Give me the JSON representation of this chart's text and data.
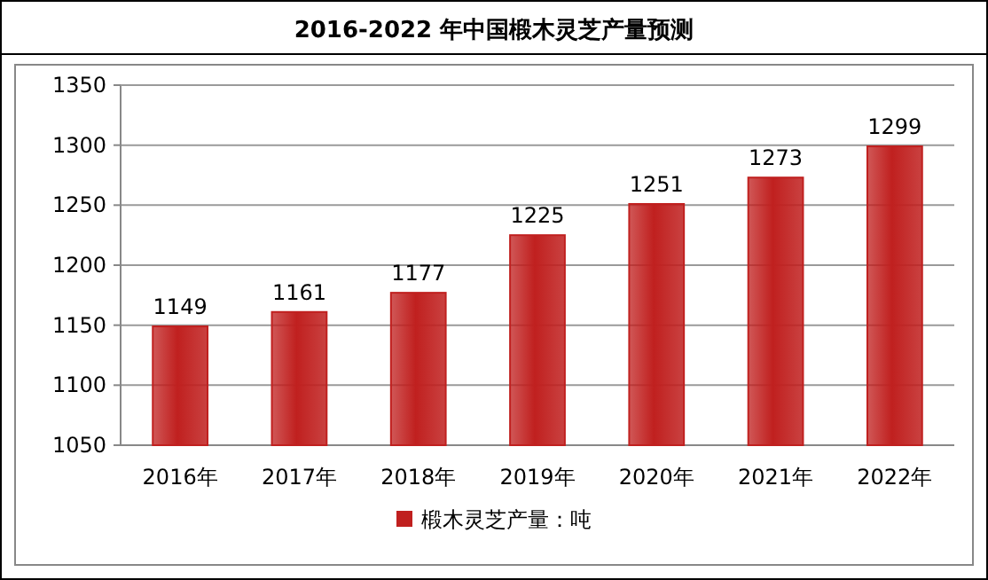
{
  "chart_data": {
    "type": "bar",
    "title": "2016-2022 年中国椴木灵芝产量预测",
    "categories": [
      "2016年",
      "2017年",
      "2018年",
      "2019年",
      "2020年",
      "2021年",
      "2022年"
    ],
    "series": [
      {
        "name": "椴木灵芝产量：吨",
        "color": "#c0201f",
        "values": [
          1149,
          1161,
          1177,
          1225,
          1251,
          1273,
          1299
        ]
      }
    ],
    "ylim": [
      1050,
      1350
    ],
    "yticks": [
      1050,
      1100,
      1150,
      1200,
      1250,
      1300,
      1350
    ],
    "grid": "y",
    "legend": "bottom",
    "data_labels": true
  }
}
